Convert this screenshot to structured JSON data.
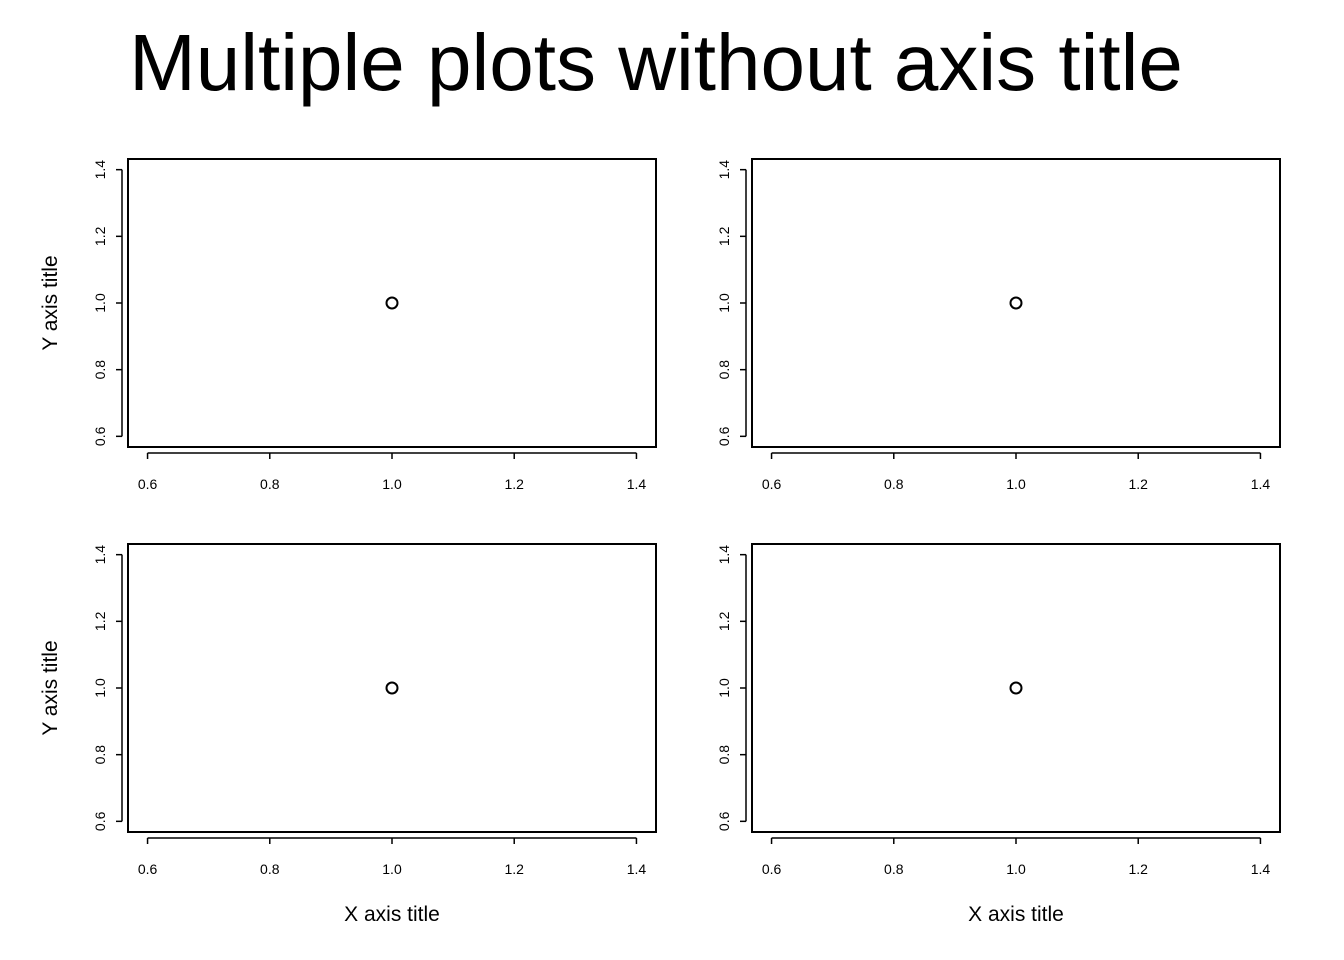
{
  "title": "Multiple plots without axis title",
  "chart_data": [
    {
      "type": "scatter",
      "x": [
        1.0
      ],
      "y": [
        1.0
      ],
      "xlim": [
        0.6,
        1.4
      ],
      "ylim": [
        0.6,
        1.4
      ],
      "xticks": [
        "0.6",
        "0.8",
        "1.0",
        "1.2",
        "1.4"
      ],
      "yticks": [
        "0.6",
        "0.8",
        "1.0",
        "1.2",
        "1.4"
      ],
      "xlabel": "",
      "ylabel": "Y axis title",
      "marker": "open-circle",
      "grid": false
    },
    {
      "type": "scatter",
      "x": [
        1.0
      ],
      "y": [
        1.0
      ],
      "xlim": [
        0.6,
        1.4
      ],
      "ylim": [
        0.6,
        1.4
      ],
      "xticks": [
        "0.6",
        "0.8",
        "1.0",
        "1.2",
        "1.4"
      ],
      "yticks": [
        "0.6",
        "0.8",
        "1.0",
        "1.2",
        "1.4"
      ],
      "xlabel": "",
      "ylabel": "",
      "marker": "open-circle",
      "grid": false
    },
    {
      "type": "scatter",
      "x": [
        1.0
      ],
      "y": [
        1.0
      ],
      "xlim": [
        0.6,
        1.4
      ],
      "ylim": [
        0.6,
        1.4
      ],
      "xticks": [
        "0.6",
        "0.8",
        "1.0",
        "1.2",
        "1.4"
      ],
      "yticks": [
        "0.6",
        "0.8",
        "1.0",
        "1.2",
        "1.4"
      ],
      "xlabel": "X axis title",
      "ylabel": "Y axis title",
      "marker": "open-circle",
      "grid": false
    },
    {
      "type": "scatter",
      "x": [
        1.0
      ],
      "y": [
        1.0
      ],
      "xlim": [
        0.6,
        1.4
      ],
      "ylim": [
        0.6,
        1.4
      ],
      "xticks": [
        "0.6",
        "0.8",
        "1.0",
        "1.2",
        "1.4"
      ],
      "yticks": [
        "0.6",
        "0.8",
        "1.0",
        "1.2",
        "1.4"
      ],
      "xlabel": "X axis title",
      "ylabel": "",
      "marker": "open-circle",
      "grid": false
    }
  ]
}
